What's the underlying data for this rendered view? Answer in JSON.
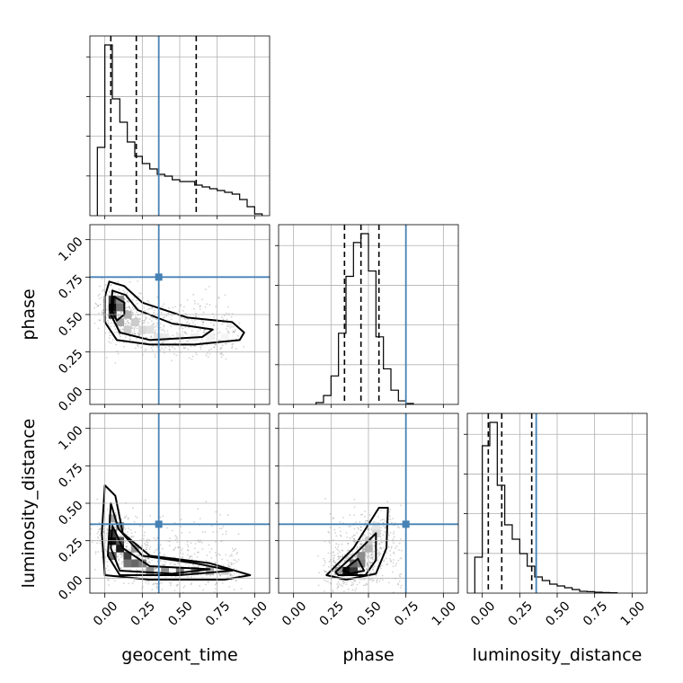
{
  "chart_data": {
    "type": "corner",
    "parameters": [
      "geocent_time",
      "phase",
      "luminosity_distance"
    ],
    "axis_range": [
      -0.1,
      1.1
    ],
    "ticks": [
      0.0,
      0.25,
      0.5,
      0.75,
      1.0
    ],
    "tick_labels": [
      "0.00",
      "0.25",
      "0.50",
      "0.75",
      "1.00"
    ],
    "truth": {
      "geocent_time": 0.36,
      "phase": 0.75,
      "luminosity_distance": 0.36
    },
    "colors": {
      "truth": "#4682b4",
      "hist": "#000000",
      "samples": "#808080",
      "grid": "#b0b0b0"
    },
    "histograms": [
      {
        "param": "geocent_time",
        "bin_edges": [
          -0.05,
          0.0,
          0.05,
          0.1,
          0.15,
          0.2,
          0.25,
          0.3,
          0.35,
          0.4,
          0.45,
          0.5,
          0.55,
          0.6,
          0.65,
          0.7,
          0.75,
          0.8,
          0.85,
          0.9,
          0.95,
          1.0,
          1.05
        ],
        "counts": [
          0.38,
          0.95,
          0.65,
          0.52,
          0.41,
          0.33,
          0.29,
          0.26,
          0.23,
          0.22,
          0.2,
          0.19,
          0.19,
          0.17,
          0.16,
          0.15,
          0.14,
          0.13,
          0.12,
          0.09,
          0.05,
          0.01
        ],
        "quantiles": [
          0.04,
          0.21,
          0.61
        ]
      },
      {
        "param": "phase",
        "bin_edges": [
          0.15,
          0.2,
          0.25,
          0.3,
          0.35,
          0.4,
          0.45,
          0.5,
          0.55,
          0.6,
          0.65,
          0.7,
          0.75,
          0.8
        ],
        "counts": [
          0.01,
          0.05,
          0.16,
          0.4,
          0.72,
          0.91,
          0.96,
          0.75,
          0.38,
          0.2,
          0.08,
          0.02,
          0.005
        ],
        "quantiles": [
          0.34,
          0.45,
          0.57
        ]
      },
      {
        "param": "luminosity_distance",
        "bin_edges": [
          -0.05,
          0.0,
          0.05,
          0.1,
          0.15,
          0.2,
          0.25,
          0.3,
          0.35,
          0.4,
          0.45,
          0.5,
          0.55,
          0.6,
          0.65,
          0.7,
          0.75,
          0.8,
          0.85,
          0.9
        ],
        "counts": [
          0.2,
          0.82,
          0.95,
          0.6,
          0.38,
          0.3,
          0.22,
          0.15,
          0.09,
          0.07,
          0.05,
          0.04,
          0.03,
          0.02,
          0.01,
          0.008,
          0.005,
          0.003,
          0.002
        ],
        "quantiles": [
          0.04,
          0.13,
          0.33
        ]
      }
    ],
    "density_2d": [
      {
        "x_param": "geocent_time",
        "y_param": "phase",
        "cells": [
          {
            "x": 0.05,
            "y": 0.55,
            "w": 0.95
          },
          {
            "x": 0.05,
            "y": 0.6,
            "w": 0.75
          },
          {
            "x": 0.05,
            "y": 0.5,
            "w": 0.8
          },
          {
            "x": 0.1,
            "y": 0.55,
            "w": 0.55
          },
          {
            "x": 0.1,
            "y": 0.6,
            "w": 0.45
          },
          {
            "x": 0.1,
            "y": 0.45,
            "w": 0.35
          },
          {
            "x": 0.15,
            "y": 0.5,
            "w": 0.3
          },
          {
            "x": 0.15,
            "y": 0.4,
            "w": 0.2
          },
          {
            "x": 0.2,
            "y": 0.45,
            "w": 0.2
          },
          {
            "x": 0.25,
            "y": 0.4,
            "w": 0.15
          },
          {
            "x": 0.3,
            "y": 0.4,
            "w": 0.12
          },
          {
            "x": 0.35,
            "y": 0.35,
            "w": 0.1
          },
          {
            "x": 0.4,
            "y": 0.35,
            "w": 0.08
          },
          {
            "x": 0.5,
            "y": 0.35,
            "w": 0.06
          },
          {
            "x": 0.6,
            "y": 0.35,
            "w": 0.06
          },
          {
            "x": 0.7,
            "y": 0.35,
            "w": 0.05
          },
          {
            "x": 0.8,
            "y": 0.35,
            "w": 0.04
          }
        ],
        "contours": [
          [
            [
              0.03,
              0.72
            ],
            [
              0.13,
              0.69
            ],
            [
              0.25,
              0.58
            ],
            [
              0.55,
              0.48
            ],
            [
              0.85,
              0.45
            ],
            [
              0.93,
              0.38
            ],
            [
              0.9,
              0.33
            ],
            [
              0.6,
              0.3
            ],
            [
              0.3,
              0.3
            ],
            [
              0.08,
              0.33
            ],
            [
              0.0,
              0.45
            ],
            [
              0.0,
              0.62
            ]
          ],
          [
            [
              0.05,
              0.66
            ],
            [
              0.14,
              0.63
            ],
            [
              0.22,
              0.53
            ],
            [
              0.45,
              0.44
            ],
            [
              0.72,
              0.4
            ],
            [
              0.65,
              0.35
            ],
            [
              0.3,
              0.33
            ],
            [
              0.1,
              0.38
            ],
            [
              0.04,
              0.5
            ]
          ],
          [
            [
              0.06,
              0.62
            ],
            [
              0.13,
              0.58
            ],
            [
              0.13,
              0.5
            ],
            [
              0.08,
              0.46
            ],
            [
              0.05,
              0.52
            ]
          ]
        ],
        "scatter_region": {
          "x": [
            0.0,
            0.98
          ],
          "y": [
            0.2,
            0.8
          ]
        }
      },
      {
        "x_param": "geocent_time",
        "y_param": "luminosity_distance",
        "cells": [
          {
            "x": 0.05,
            "y": 0.25,
            "w": 0.95
          },
          {
            "x": 0.05,
            "y": 0.3,
            "w": 0.75
          },
          {
            "x": 0.1,
            "y": 0.2,
            "w": 0.9
          },
          {
            "x": 0.1,
            "y": 0.25,
            "w": 0.7
          },
          {
            "x": 0.15,
            "y": 0.15,
            "w": 0.75
          },
          {
            "x": 0.05,
            "y": 0.15,
            "w": 0.6
          },
          {
            "x": 0.2,
            "y": 0.1,
            "w": 0.6
          },
          {
            "x": 0.15,
            "y": 0.1,
            "w": 0.55
          },
          {
            "x": 0.25,
            "y": 0.1,
            "w": 0.5
          },
          {
            "x": 0.3,
            "y": 0.05,
            "w": 0.45
          },
          {
            "x": 0.4,
            "y": 0.05,
            "w": 0.45
          },
          {
            "x": 0.5,
            "y": 0.05,
            "w": 0.55
          },
          {
            "x": 0.6,
            "y": 0.05,
            "w": 0.45
          },
          {
            "x": 0.7,
            "y": 0.05,
            "w": 0.35
          },
          {
            "x": 0.8,
            "y": 0.05,
            "w": 0.2
          },
          {
            "x": 0.05,
            "y": 0.4,
            "w": 0.35
          },
          {
            "x": 0.1,
            "y": 0.35,
            "w": 0.4
          },
          {
            "x": 0.2,
            "y": 0.2,
            "w": 0.4
          }
        ],
        "contours": [
          [
            [
              0.0,
              0.62
            ],
            [
              0.07,
              0.55
            ],
            [
              0.12,
              0.3
            ],
            [
              0.3,
              0.15
            ],
            [
              0.7,
              0.1
            ],
            [
              0.97,
              0.02
            ],
            [
              0.8,
              -0.01
            ],
            [
              0.3,
              -0.01
            ],
            [
              0.0,
              0.02
            ],
            [
              -0.02,
              0.3
            ]
          ],
          [
            [
              0.04,
              0.5
            ],
            [
              0.09,
              0.33
            ],
            [
              0.25,
              0.15
            ],
            [
              0.6,
              0.1
            ],
            [
              0.85,
              0.05
            ],
            [
              0.5,
              0.02
            ],
            [
              0.1,
              0.02
            ],
            [
              0.02,
              0.15
            ]
          ],
          [
            [
              0.05,
              0.35
            ],
            [
              0.12,
              0.2
            ],
            [
              0.3,
              0.08
            ],
            [
              0.7,
              0.06
            ],
            [
              0.45,
              0.03
            ],
            [
              0.1,
              0.05
            ],
            [
              0.04,
              0.2
            ]
          ]
        ],
        "scatter_region": {
          "x": [
            0.0,
            1.0
          ],
          "y": [
            0.0,
            0.95
          ]
        }
      },
      {
        "x_param": "phase",
        "y_param": "luminosity_distance",
        "cells": [
          {
            "x": 0.35,
            "y": 0.05,
            "w": 0.95
          },
          {
            "x": 0.4,
            "y": 0.05,
            "w": 0.8
          },
          {
            "x": 0.4,
            "y": 0.1,
            "w": 0.6
          },
          {
            "x": 0.45,
            "y": 0.1,
            "w": 0.5
          },
          {
            "x": 0.45,
            "y": 0.15,
            "w": 0.45
          },
          {
            "x": 0.3,
            "y": 0.05,
            "w": 0.4
          },
          {
            "x": 0.5,
            "y": 0.2,
            "w": 0.3
          },
          {
            "x": 0.5,
            "y": 0.25,
            "w": 0.2
          },
          {
            "x": 0.55,
            "y": 0.3,
            "w": 0.15
          },
          {
            "x": 0.55,
            "y": 0.35,
            "w": 0.1
          }
        ],
        "contours": [
          [
            [
              0.22,
              0.02
            ],
            [
              0.4,
              0.2
            ],
            [
              0.57,
              0.47
            ],
            [
              0.63,
              0.47
            ],
            [
              0.62,
              0.2
            ],
            [
              0.55,
              0.03
            ],
            [
              0.35,
              -0.01
            ]
          ],
          [
            [
              0.28,
              0.04
            ],
            [
              0.42,
              0.17
            ],
            [
              0.55,
              0.3
            ],
            [
              0.55,
              0.12
            ],
            [
              0.48,
              0.02
            ],
            [
              0.3,
              0.02
            ]
          ],
          [
            [
              0.33,
              0.05
            ],
            [
              0.43,
              0.13
            ],
            [
              0.47,
              0.05
            ],
            [
              0.38,
              0.03
            ]
          ]
        ],
        "scatter_region": {
          "x": [
            0.2,
            0.78
          ],
          "y": [
            0.0,
            0.9
          ]
        }
      }
    ]
  }
}
